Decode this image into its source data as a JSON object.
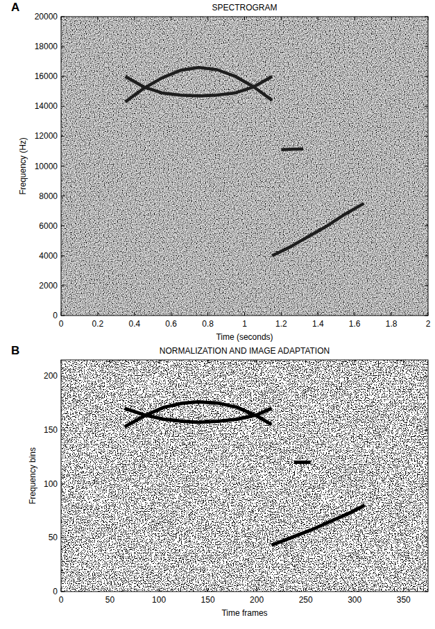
{
  "chart_data": [
    {
      "type": "spectrogram",
      "panel_label": "A",
      "title": "SPECTROGRAM",
      "x_label": "Time (seconds)",
      "y_label": "Frequency (Hz)",
      "xlim": [
        0,
        2
      ],
      "ylim": [
        0,
        20000
      ],
      "xticks": [
        0,
        0.2,
        0.4,
        0.6,
        0.8,
        1,
        1.2,
        1.4,
        1.6,
        1.8,
        2
      ],
      "yticks": [
        0,
        2000,
        4000,
        6000,
        8000,
        10000,
        12000,
        14000,
        16000,
        18000,
        20000
      ],
      "grid": false,
      "series": [
        {
          "type": "line",
          "color": "#1e1e1e",
          "x": [
            0.35,
            0.45,
            0.55,
            0.65,
            0.75,
            0.85,
            0.95,
            1.05,
            1.15
          ],
          "values": [
            14300,
            15200,
            15900,
            16400,
            16600,
            16450,
            16000,
            15300,
            14400
          ]
        },
        {
          "type": "line",
          "color": "#1e1e1e",
          "x": [
            0.35,
            0.45,
            0.55,
            0.65,
            0.75,
            0.85,
            0.95,
            1.05,
            1.15
          ],
          "values": [
            16000,
            15300,
            14900,
            14750,
            14700,
            14750,
            14900,
            15300,
            16000
          ]
        },
        {
          "type": "line",
          "color": "#1e1e1e",
          "x": [
            1.2,
            1.32
          ],
          "values": [
            11100,
            11150
          ]
        },
        {
          "type": "line",
          "color": "#1e1e1e",
          "x": [
            1.15,
            1.25,
            1.35,
            1.45,
            1.55,
            1.65
          ],
          "values": [
            4000,
            4600,
            5300,
            6000,
            6800,
            7500
          ]
        }
      ]
    },
    {
      "type": "binary_image",
      "panel_label": "B",
      "title": "NORMALIZATION AND IMAGE ADAPTATION",
      "x_label": "Time frames",
      "y_label": "Frequency bins",
      "xlim": [
        0,
        375
      ],
      "ylim": [
        0,
        215
      ],
      "xticks": [
        0,
        50,
        100,
        150,
        200,
        250,
        300,
        350
      ],
      "yticks": [
        0,
        50,
        100,
        150,
        200
      ],
      "grid": false,
      "series": [
        {
          "type": "line",
          "color": "#000000",
          "x": [
            65,
            85,
            105,
            125,
            140,
            160,
            180,
            200,
            215
          ],
          "values": [
            153,
            163,
            171,
            175,
            176,
            175,
            171,
            163,
            155
          ]
        },
        {
          "type": "line",
          "color": "#000000",
          "x": [
            65,
            85,
            105,
            125,
            140,
            160,
            180,
            200,
            215
          ],
          "values": [
            170,
            164,
            160,
            158,
            157,
            158,
            160,
            164,
            170
          ]
        },
        {
          "type": "line",
          "color": "#000000",
          "x": [
            238,
            255
          ],
          "values": [
            120,
            120
          ]
        },
        {
          "type": "line",
          "color": "#000000",
          "x": [
            215,
            235,
            255,
            275,
            295,
            310
          ],
          "values": [
            43,
            50,
            57,
            65,
            73,
            80
          ]
        }
      ]
    }
  ]
}
